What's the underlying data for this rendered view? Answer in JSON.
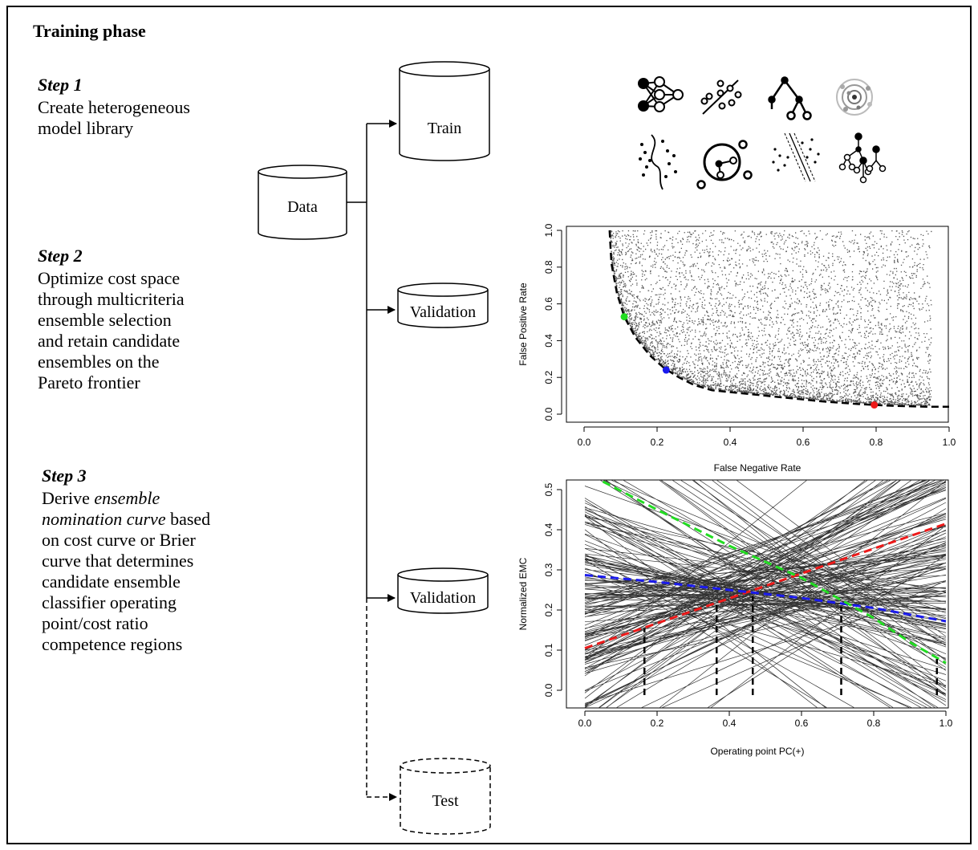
{
  "title": "Training phase",
  "steps": {
    "step1": {
      "heading": "Step 1",
      "body": "Create heterogeneous\nmodel library"
    },
    "step2": {
      "heading": "Step 2",
      "body": "Optimize cost space\nthrough multicriteria\nensemble selection\nand retain candidate\nensembles on the\nPareto frontier"
    },
    "step3": {
      "heading": "Step 3",
      "body_parts": [
        "Derive ",
        "ensemble\nnomination curve",
        " based\non cost curve or Brier\ncurve that determines\ncandidate ensemble\nclassifier operating\npoint/cost ratio\ncompetence regions"
      ]
    }
  },
  "flow": {
    "data_label": "Data",
    "train_label": "Train",
    "validation_label_1": "Validation",
    "validation_label_2": "Validation",
    "test_label": "Test"
  },
  "model_icons": [
    "neural-network-icon",
    "naive-bayes-icon",
    "decision-tree-icon",
    "clustering-icon",
    "boundary-icon",
    "knn-icon",
    "svm-icon",
    "random-forest-icon"
  ],
  "colors": {
    "green": "#22dd22",
    "blue": "#1a1aee",
    "red": "#ee1a1a",
    "points": "#555555"
  },
  "chart_data": [
    {
      "type": "scatter",
      "xlabel": "False Negative Rate",
      "ylabel": "False Positive Rate",
      "xlim": [
        0.0,
        1.0
      ],
      "ylim": [
        0.0,
        1.0
      ],
      "x_ticks": [
        "0.0",
        "0.2",
        "0.4",
        "0.6",
        "0.8",
        "1.0"
      ],
      "y_ticks": [
        "0.0",
        "0.2",
        "0.4",
        "0.6",
        "0.8",
        "1.0"
      ],
      "pareto_frontier": {
        "x": [
          0.07,
          0.075,
          0.09,
          0.11,
          0.14,
          0.18,
          0.22,
          0.26,
          0.3,
          0.35,
          0.45,
          0.55,
          0.65,
          0.75,
          0.85,
          0.95,
          1.0
        ],
        "y": [
          1.0,
          0.82,
          0.66,
          0.53,
          0.42,
          0.32,
          0.25,
          0.2,
          0.16,
          0.13,
          0.11,
          0.09,
          0.07,
          0.055,
          0.045,
          0.04,
          0.04
        ]
      },
      "highlighted_points": [
        {
          "color": "green",
          "x": 0.11,
          "y": 0.53
        },
        {
          "color": "blue",
          "x": 0.225,
          "y": 0.24
        },
        {
          "color": "red",
          "x": 0.795,
          "y": 0.05
        }
      ]
    },
    {
      "type": "line",
      "xlabel": "Operating point PC(+)",
      "ylabel": "Normalized EMC",
      "xlim": [
        0.0,
        1.0
      ],
      "ylim": [
        0.0,
        0.5
      ],
      "x_ticks": [
        "0.0",
        "0.2",
        "0.4",
        "0.6",
        "0.8",
        "1.0"
      ],
      "y_ticks": [
        "0.0",
        "0.1",
        "0.2",
        "0.3",
        "0.4",
        "0.5"
      ],
      "highlighted_series": [
        {
          "color": "red",
          "x": [
            0.0,
            1.0
          ],
          "y": [
            0.105,
            0.415
          ]
        },
        {
          "color": "blue",
          "x": [
            0.0,
            0.2,
            0.4,
            0.6,
            0.8,
            1.0
          ],
          "y": [
            0.287,
            0.27,
            0.25,
            0.23,
            0.205,
            0.172
          ]
        },
        {
          "color": "green",
          "x": [
            0.05,
            0.2,
            0.4,
            0.6,
            0.72,
            0.8,
            0.9,
            1.0
          ],
          "y": [
            0.52,
            0.45,
            0.36,
            0.28,
            0.22,
            0.18,
            0.12,
            0.068
          ]
        }
      ],
      "boundaries": [
        {
          "x": 0.165,
          "y": 0.155
        },
        {
          "x": 0.365,
          "y": 0.215
        },
        {
          "x": 0.465,
          "y": 0.235
        },
        {
          "x": 0.71,
          "y": 0.208
        },
        {
          "x": 0.975,
          "y": 0.078
        }
      ]
    }
  ]
}
